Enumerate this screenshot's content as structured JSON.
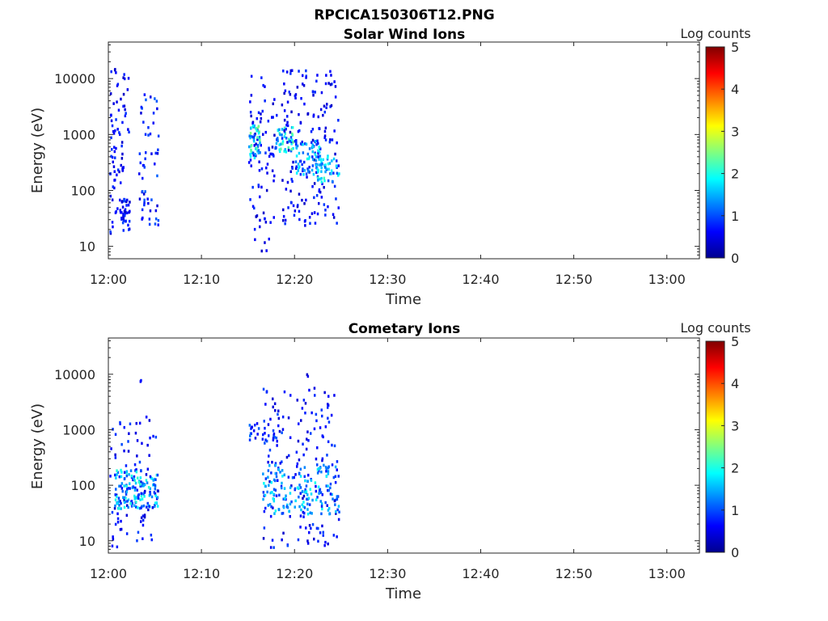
{
  "figure": {
    "title": "RPCICA150306T12.PNG"
  },
  "chart_data": [
    {
      "type": "heatmap",
      "title": "Solar Wind Ions",
      "xlabel": "Time",
      "ylabel": "Energy (eV)",
      "yscale": "log",
      "ylim": [
        6,
        45000
      ],
      "xlim_minutes": [
        0,
        63.5
      ],
      "x_ticks": [
        {
          "minute": 0,
          "label": "12:00"
        },
        {
          "minute": 10,
          "label": "12:10"
        },
        {
          "minute": 20,
          "label": "12:20"
        },
        {
          "minute": 30,
          "label": "12:30"
        },
        {
          "minute": 40,
          "label": "12:40"
        },
        {
          "minute": 50,
          "label": "12:50"
        },
        {
          "minute": 60,
          "label": "13:00"
        }
      ],
      "y_ticks": [
        {
          "value": 10,
          "label": "10"
        },
        {
          "value": 100,
          "label": "100"
        },
        {
          "value": 1000,
          "label": "1000"
        },
        {
          "value": 10000,
          "label": "10000"
        }
      ],
      "colorbar": {
        "label": "Log counts",
        "range": [
          0,
          5
        ],
        "ticks": [
          "0",
          "1",
          "2",
          "3",
          "4",
          "5"
        ]
      },
      "clusters": [
        {
          "t0": 0.0,
          "t1": 2.2,
          "e0": 18,
          "e1": 16000,
          "n": 90,
          "cmax": 0.9,
          "seed": 11
        },
        {
          "t0": 1.2,
          "t1": 2.2,
          "e0": 20,
          "e1": 80,
          "n": 30,
          "cmax": 1.0,
          "seed": 12
        },
        {
          "t0": 3.2,
          "t1": 5.3,
          "e0": 25,
          "e1": 5500,
          "n": 55,
          "cmax": 1.1,
          "seed": 13
        },
        {
          "t0": 15.0,
          "t1": 18.0,
          "e0": 8,
          "e1": 12000,
          "n": 85,
          "cmax": 0.9,
          "seed": 14
        },
        {
          "t0": 15.0,
          "t1": 16.2,
          "e0": 400,
          "e1": 1600,
          "n": 45,
          "cmax": 2.6,
          "seed": 15
        },
        {
          "t0": 17.8,
          "t1": 19.8,
          "e0": 500,
          "e1": 1500,
          "n": 45,
          "cmax": 2.5,
          "seed": 16
        },
        {
          "t0": 18.5,
          "t1": 24.7,
          "e0": 25,
          "e1": 15000,
          "n": 170,
          "cmax": 0.9,
          "seed": 17
        },
        {
          "t0": 20.0,
          "t1": 22.8,
          "e0": 200,
          "e1": 800,
          "n": 60,
          "cmax": 2.0,
          "seed": 18
        },
        {
          "t0": 22.2,
          "t1": 24.7,
          "e0": 150,
          "e1": 450,
          "n": 50,
          "cmax": 2.2,
          "seed": 19
        }
      ]
    },
    {
      "type": "heatmap",
      "title": "Cometary Ions",
      "xlabel": "Time",
      "ylabel": "Energy (eV)",
      "yscale": "log",
      "ylim": [
        6,
        45000
      ],
      "xlim_minutes": [
        0,
        63.5
      ],
      "x_ticks": [
        {
          "minute": 0,
          "label": "12:00"
        },
        {
          "minute": 10,
          "label": "12:10"
        },
        {
          "minute": 20,
          "label": "12:20"
        },
        {
          "minute": 30,
          "label": "12:30"
        },
        {
          "minute": 40,
          "label": "12:40"
        },
        {
          "minute": 50,
          "label": "12:50"
        },
        {
          "minute": 60,
          "label": "13:00"
        }
      ],
      "y_ticks": [
        {
          "value": 10,
          "label": "10"
        },
        {
          "value": 100,
          "label": "100"
        },
        {
          "value": 1000,
          "label": "1000"
        },
        {
          "value": 10000,
          "label": "10000"
        }
      ],
      "colorbar": {
        "label": "Log counts",
        "range": [
          0,
          5
        ],
        "ticks": [
          "0",
          "1",
          "2",
          "3",
          "4",
          "5"
        ]
      },
      "clusters": [
        {
          "t0": 0.0,
          "t1": 5.3,
          "e0": 6,
          "e1": 1800,
          "n": 100,
          "cmax": 1.0,
          "seed": 21
        },
        {
          "t0": 0.6,
          "t1": 5.3,
          "e0": 40,
          "e1": 200,
          "n": 130,
          "cmax": 2.1,
          "seed": 22
        },
        {
          "t0": 3.3,
          "t1": 3.5,
          "e0": 7500,
          "e1": 8500,
          "n": 2,
          "cmax": 0.8,
          "seed": 23
        },
        {
          "t0": 15.0,
          "t1": 18.8,
          "e0": 600,
          "e1": 1400,
          "n": 30,
          "cmax": 1.2,
          "seed": 24
        },
        {
          "t0": 16.5,
          "t1": 24.7,
          "e0": 7,
          "e1": 6000,
          "n": 150,
          "cmax": 1.0,
          "seed": 25
        },
        {
          "t0": 16.5,
          "t1": 24.7,
          "e0": 30,
          "e1": 250,
          "n": 170,
          "cmax": 2.0,
          "seed": 26
        },
        {
          "t0": 21.2,
          "t1": 21.4,
          "e0": 9000,
          "e1": 11000,
          "n": 2,
          "cmax": 0.6,
          "seed": 27
        }
      ]
    }
  ]
}
